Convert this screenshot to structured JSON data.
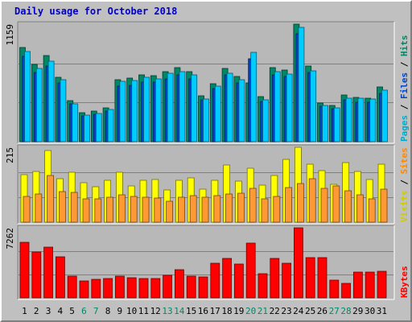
{
  "chart_data": {
    "type": "bar",
    "title": "Daily usage for October 2018",
    "categories": [
      "1",
      "2",
      "3",
      "4",
      "5",
      "6",
      "7",
      "8",
      "9",
      "10",
      "11",
      "12",
      "13",
      "14",
      "15",
      "16",
      "17",
      "18",
      "19",
      "20",
      "21",
      "22",
      "23",
      "24",
      "25",
      "26",
      "27",
      "28",
      "29",
      "30",
      "31"
    ],
    "weekend_days": [
      "6",
      "7",
      "13",
      "14",
      "20",
      "21",
      "27",
      "28"
    ],
    "grid": true,
    "panels": [
      {
        "id": "pages-files-hits",
        "ymax_label": "1159",
        "ylim": [
          0,
          1159
        ],
        "right_labels": [
          {
            "text": "Pages",
            "color": "#00aacc"
          },
          {
            "text": " / ",
            "color": "#000000"
          },
          {
            "text": "Files",
            "color": "#0044cc"
          },
          {
            "text": " / ",
            "color": "#000000"
          },
          {
            "text": "Hits",
            "color": "#008866"
          }
        ],
        "series": [
          {
            "name": "Hits",
            "color": "#008866",
            "values": [
              931,
              760,
              849,
              634,
              402,
              286,
              303,
              337,
              611,
              624,
              657,
              651,
              690,
              729,
              691,
              450,
              570,
              723,
              646,
              582,
              442,
              731,
              707,
              1159,
              746,
              380,
              356,
              461,
              434,
              430,
              542
            ]
          },
          {
            "name": "Files",
            "color": "#0044cc",
            "values": [
              840,
              682,
              750,
              577,
              370,
              256,
              273,
              305,
              548,
              555,
              590,
              586,
              620,
              655,
              620,
              410,
              520,
              655,
              580,
              820,
              400,
              660,
              640,
              1060,
              680,
              350,
              325,
              415,
              390,
              390,
              480
            ]
          },
          {
            "name": "Pages",
            "color": "#00ccff",
            "values": [
              888,
              725,
              797,
              610,
              375,
              263,
              277,
              316,
              593,
              607,
              634,
              623,
              671,
              694,
              660,
              424,
              547,
              674,
              614,
              882,
              411,
              689,
              669,
              1124,
              697,
              359,
              330,
              426,
              425,
              418,
              506
            ]
          }
        ]
      },
      {
        "id": "visits-sites",
        "ymax_label": "215",
        "ylim": [
          0,
          215
        ],
        "right_labels": [
          {
            "text": "Visits",
            "color": "#cccc00"
          },
          {
            "text": " / ",
            "color": "#000000"
          },
          {
            "text": "Sites",
            "color": "#ff8800"
          }
        ],
        "series": [
          {
            "name": "Visits",
            "color": "#ffff00",
            "values": [
              136,
              145,
              205,
              124,
              144,
              113,
              101,
              120,
              143,
              104,
              121,
              122,
              92,
              121,
              126,
              95,
              120,
              163,
              119,
              156,
              107,
              135,
              180,
              215,
              167,
              149,
              109,
              171,
              145,
              122,
              167
            ]
          },
          {
            "name": "Sites",
            "color": "#ff9933",
            "values": [
              75,
              80,
              135,
              88,
              85,
              68,
              66,
              72,
              78,
              74,
              72,
              70,
              61,
              72,
              76,
              71,
              76,
              82,
              84,
              96,
              68,
              75,
              99,
              111,
              125,
              96,
              105,
              90,
              78,
              66,
              94
            ]
          }
        ]
      },
      {
        "id": "kbytes",
        "ymax_label": "7262",
        "ylim": [
          0,
          7262
        ],
        "right_labels": [
          {
            "text": "KBytes",
            "color": "#ff0000"
          }
        ],
        "series": [
          {
            "name": "KBytes",
            "color": "#ff0000",
            "values": [
              5778,
              4765,
              5220,
              4247,
              2289,
              1780,
              1880,
              1962,
              2225,
              2052,
              2008,
              2044,
              2308,
              2956,
              2289,
              2154,
              3550,
              4111,
              3541,
              5709,
              2527,
              4050,
              3587,
              7262,
              4143,
              4143,
              1818,
              1510,
              2686,
              2686,
              2732
            ]
          }
        ]
      }
    ]
  }
}
